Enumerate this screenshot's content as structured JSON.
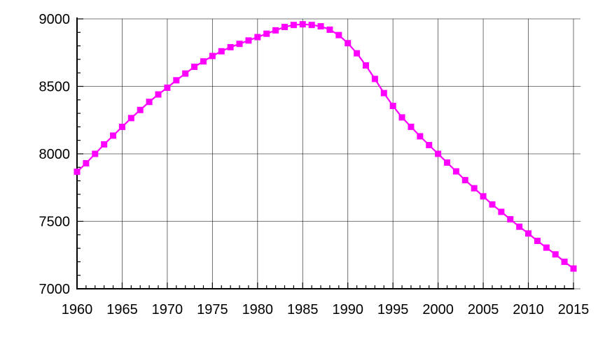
{
  "chart_data": {
    "type": "line",
    "title": "",
    "xlabel": "",
    "ylabel": "",
    "xlim": [
      1960,
      2015
    ],
    "ylim": [
      7000,
      9000
    ],
    "xticks": [
      "1960",
      "1965",
      "1970",
      "1975",
      "1980",
      "1985",
      "1990",
      "1995",
      "2000",
      "2005",
      "2010",
      "2015"
    ],
    "yticks": [
      "7000",
      "7500",
      "8000",
      "8500",
      "9000"
    ],
    "grid": true,
    "series": [
      {
        "color": "#ff00ff",
        "marker": "square",
        "x": [
          1960,
          1961,
          1962,
          1963,
          1964,
          1965,
          1966,
          1967,
          1968,
          1969,
          1970,
          1971,
          1972,
          1973,
          1974,
          1975,
          1976,
          1977,
          1978,
          1979,
          1980,
          1981,
          1982,
          1983,
          1984,
          1985,
          1986,
          1987,
          1988,
          1989,
          1990,
          1991,
          1992,
          1993,
          1994,
          1995,
          1996,
          1997,
          1998,
          1999,
          2000,
          2001,
          2002,
          2003,
          2004,
          2005,
          2006,
          2007,
          2008,
          2009,
          2010,
          2011,
          2012,
          2013,
          2014,
          2015
        ],
        "y": [
          7867,
          7930,
          8000,
          8070,
          8135,
          8200,
          8265,
          8325,
          8385,
          8440,
          8490,
          8545,
          8595,
          8645,
          8685,
          8725,
          8760,
          8790,
          8815,
          8840,
          8865,
          8890,
          8915,
          8940,
          8955,
          8960,
          8955,
          8945,
          8920,
          8880,
          8820,
          8745,
          8655,
          8555,
          8450,
          8355,
          8270,
          8200,
          8130,
          8065,
          8000,
          7935,
          7870,
          7805,
          7745,
          7685,
          7625,
          7570,
          7515,
          7460,
          7410,
          7355,
          7305,
          7255,
          7200,
          7150
        ]
      }
    ]
  }
}
